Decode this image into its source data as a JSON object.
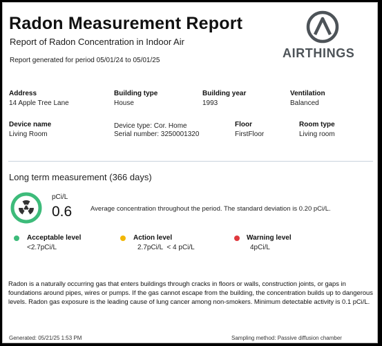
{
  "header": {
    "title": "Radon Measurement Report",
    "subtitle": "Report of Radon Concentration in Indoor Air",
    "period": "Report generated for period 05/01/24 to 05/01/25",
    "logo_text": "AIRTHINGS"
  },
  "details": {
    "address_label": "Address",
    "address_value": "14 Apple Tree Lane",
    "building_type_label": "Building type",
    "building_type_value": "House",
    "building_year_label": "Building year",
    "building_year_value": "1993",
    "ventilation_label": "Ventilation",
    "ventilation_value": "Balanced",
    "device_name_label": "Device name",
    "device_name_value": "Living Room",
    "device_type": "Device type: Cor. Home",
    "serial_number": "Serial number: 3250001320",
    "floor_label": "Floor",
    "floor_value": "FirstFloor",
    "room_type_label": "Room type",
    "room_type_value": "Living room"
  },
  "measurement": {
    "section_title": "Long term measurement (366 days)",
    "unit": "pCi/L",
    "value": "0.6",
    "average_text": "Average concentration throughout the period. The standard deviation is 0.20 pCi/L.",
    "gauge_color": "#3dbb7a"
  },
  "levels": [
    {
      "label": "Acceptable level",
      "value": "<2.7pCi/L",
      "color": "#3dbb7a"
    },
    {
      "label": "Action level",
      "value": "2.7pCi/L  < 4 pCi/L",
      "color": "#f2b705"
    },
    {
      "label": "Warning level",
      "value": "4pCi/L",
      "color": "#e0393e"
    }
  ],
  "info": {
    "paragraph": "Radon is a naturally occurring gas that enters buildings through cracks in floors or walls, construction joints, or gaps in foundations around pipes, wires or pumps. If the gas cannot escape from the building, the concentration builds up to dangerous levels. Radon gas exposure is the leading cause of lung cancer among non-smokers. Minimum detectable activity is 0.1 pCi/L."
  },
  "footer": {
    "generated": "Generated: 05/21/25 1:53 PM",
    "sampling": "Sampling method: Passive diffusion chamber"
  }
}
